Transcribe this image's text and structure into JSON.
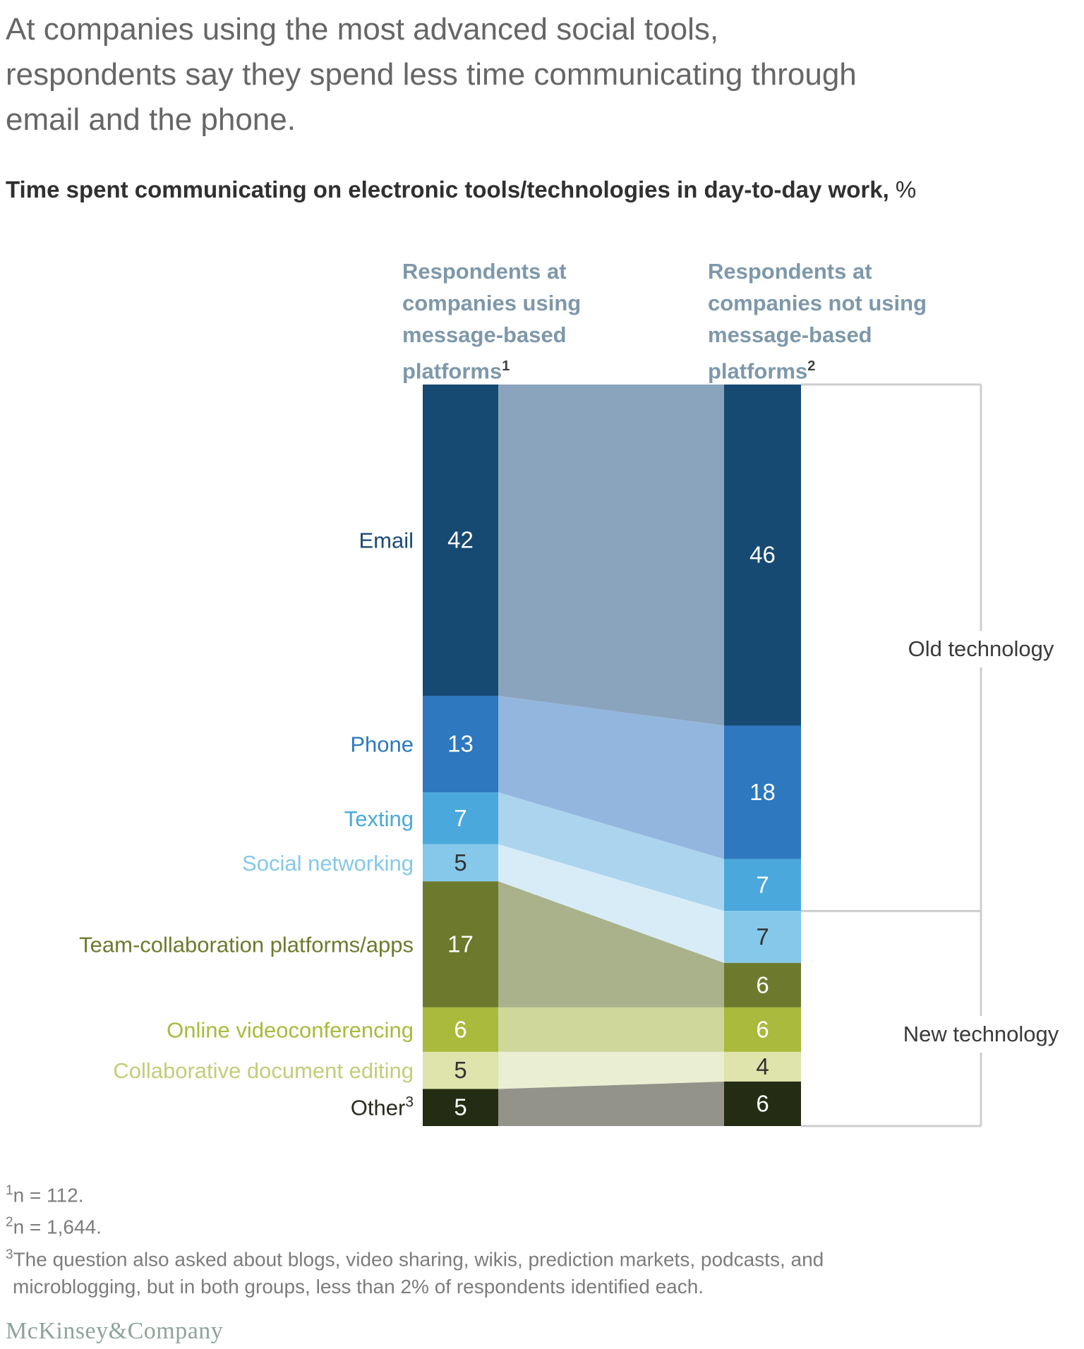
{
  "title": {
    "lines": [
      "At companies using the most advanced social tools,",
      "respondents say they spend less time communicating through",
      "email and the phone."
    ]
  },
  "subtitle": {
    "text": "Time spent communicating on electronic tools/technologies in day-to-day work,",
    "suffix": "%"
  },
  "column_headers": [
    {
      "lines": [
        "Respondents at",
        "companies using",
        "message-based",
        "platforms"
      ],
      "sup": "1"
    },
    {
      "lines": [
        "Respondents at",
        "companies not using",
        "message-based",
        "platforms"
      ],
      "sup": "2"
    }
  ],
  "chart_data": {
    "type": "stacked-bar-slope",
    "unit": "%",
    "series_names": [
      "Respondents at companies using message-based platforms",
      "Respondents at companies not using message-based platforms"
    ],
    "categories": [
      {
        "label": "Email",
        "sup": "",
        "values": [
          42,
          46
        ],
        "color": "#164a73",
        "band_color": "#8ba4bd",
        "label_color": "#1c4a74",
        "value_colors": [
          "#ffffff",
          "#ffffff"
        ]
      },
      {
        "label": "Phone",
        "sup": "",
        "values": [
          13,
          18
        ],
        "color": "#2d78bf",
        "band_color": "#93b6df",
        "label_color": "#2d78bf",
        "value_colors": [
          "#ffffff",
          "#ffffff"
        ]
      },
      {
        "label": "Texting",
        "sup": "",
        "values": [
          7,
          7
        ],
        "color": "#4aa8dc",
        "band_color": "#abd4ee",
        "label_color": "#4aa8dc",
        "value_colors": [
          "#ffffff",
          "#ffffff"
        ]
      },
      {
        "label": "Social networking",
        "sup": "",
        "values": [
          5,
          7
        ],
        "color": "#85c8ea",
        "band_color": "#d8ecf8",
        "label_color": "#85c8ea",
        "value_colors": [
          "#333333",
          "#333333"
        ]
      },
      {
        "label": "Team-collaboration platforms/apps",
        "sup": "",
        "values": [
          17,
          6
        ],
        "color": "#6d7a2e",
        "band_color": "#a9b28a",
        "label_color": "#6d7a2e",
        "value_colors": [
          "#ffffff",
          "#ffffff"
        ]
      },
      {
        "label": "Online videoconferencing",
        "sup": "",
        "values": [
          6,
          6
        ],
        "color": "#a9ba3c",
        "band_color": "#cfd79a",
        "label_color": "#a9ba3c",
        "value_colors": [
          "#ffffff",
          "#ffffff"
        ]
      },
      {
        "label": "Collaborative document editing",
        "sup": "",
        "values": [
          5,
          4
        ],
        "color": "#dfe3ac",
        "band_color": "#eaefd1",
        "label_color": "#c3cd7a",
        "value_colors": [
          "#333333",
          "#333333"
        ]
      },
      {
        "label": "Other",
        "sup": "3",
        "values": [
          5,
          6
        ],
        "color": "#242d13",
        "band_color": "#93938a",
        "label_color": "#2a2a20",
        "value_colors": [
          "#ffffff",
          "#ffffff"
        ]
      }
    ],
    "brackets": [
      {
        "label": "Old technology",
        "from_category": 0,
        "to_category": 2
      },
      {
        "label": "New technology",
        "from_category": 3,
        "to_category": 7
      }
    ]
  },
  "footnotes": [
    {
      "sup": "1",
      "lines": [
        "n = 112."
      ]
    },
    {
      "sup": "2",
      "lines": [
        "n = 1,644."
      ]
    },
    {
      "sup": "3",
      "lines": [
        "The question also asked about blogs, video sharing, wikis, prediction markets, podcasts, and",
        "microblogging, but in both groups, less than 2% of respondents identified each."
      ]
    }
  ],
  "logo": "McKinsey&Company"
}
